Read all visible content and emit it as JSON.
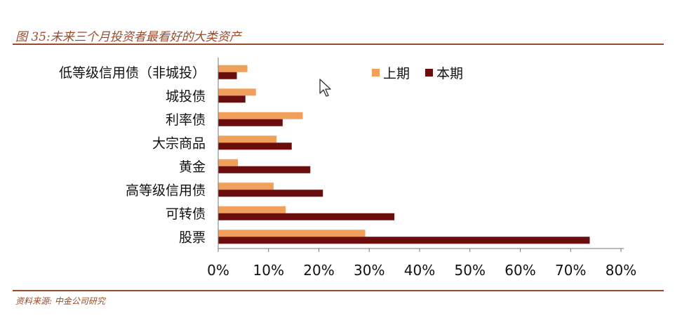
{
  "header": {
    "title": "图 35:未来三个月投资者最看好的大类资产"
  },
  "footer": {
    "source": "资料来源: 中金公司研究"
  },
  "chart_data": {
    "type": "bar",
    "orientation": "horizontal",
    "categories": [
      "低等级信用债（非城投）",
      "城投债",
      "利率债",
      "大宗商品",
      "黄金",
      "高等级信用债",
      "可转债",
      "股票"
    ],
    "series": [
      {
        "name": "上期",
        "color": "#f0a05a",
        "values": [
          5.8,
          7.5,
          16.8,
          11.6,
          3.9,
          11.0,
          13.4,
          29.2
        ]
      },
      {
        "name": "本期",
        "color": "#6b0d0d",
        "values": [
          3.7,
          5.4,
          12.8,
          14.6,
          18.3,
          20.8,
          35.0,
          73.8
        ]
      }
    ],
    "xlim": [
      0,
      80
    ],
    "xticks": [
      "0%",
      "10%",
      "20%",
      "30%",
      "40%",
      "50%",
      "60%",
      "70%",
      "80%"
    ],
    "legend_position": "top-right",
    "grid": false
  }
}
